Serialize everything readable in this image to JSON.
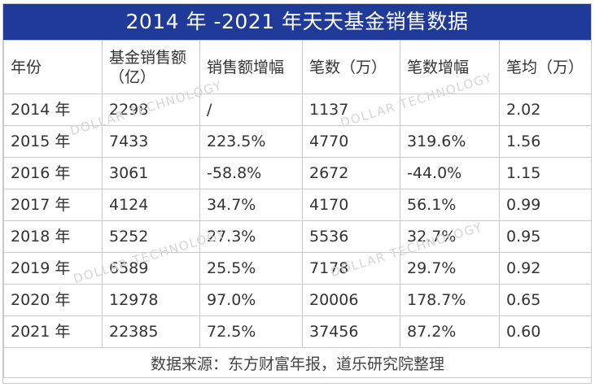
{
  "title": "2014 年 -2021 年天天基金销售数据",
  "headers": [
    "年份",
    "基金销售额（亿）",
    "销售额增幅",
    "笔数（万）",
    "笔数增幅",
    "笔均（万）"
  ],
  "rows": [
    [
      "2014 年",
      "2298",
      "/",
      "1137",
      "",
      "2.02"
    ],
    [
      "2015 年",
      "7433",
      "223.5%",
      "4770",
      "319.6%",
      "1.56"
    ],
    [
      "2016 年",
      "3061",
      "-58.8%",
      "2672",
      "-44.0%",
      "1.15"
    ],
    [
      "2017 年",
      "4124",
      "34.7%",
      "4170",
      "56.1%",
      "0.99"
    ],
    [
      "2018 年",
      "5252",
      "27.3%",
      "5536",
      "32.7%",
      "0.95"
    ],
    [
      "2019 年",
      "6589",
      "25.5%",
      "7178",
      "29.7%",
      "0.92"
    ],
    [
      "2020 年",
      "12978",
      "97.0%",
      "20006",
      "178.7%",
      "0.65"
    ],
    [
      "2021 年",
      "22385",
      "72.5%",
      "37456",
      "87.2%",
      "0.60"
    ]
  ],
  "footer": "数据来源：东方财富年报，道乐研究院整理",
  "watermark": "DOLLAR TECHNOLOGY",
  "colors": {
    "title_bg": "#203a9a",
    "title_text": "#ffffff",
    "border": "#c9c9c9",
    "text": "#333333"
  }
}
